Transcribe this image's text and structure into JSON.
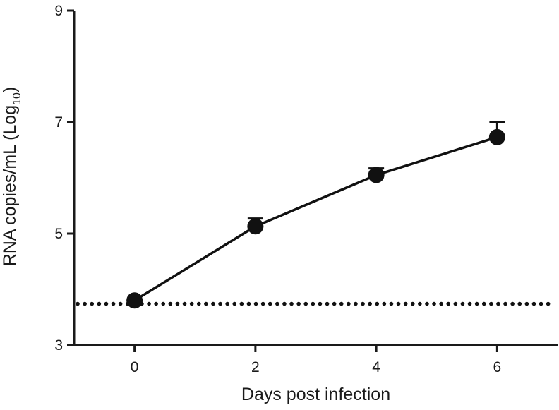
{
  "chart_data": {
    "type": "line",
    "xlabel": "Days post infection",
    "ylabel": {
      "main": "RNA copies/mL (Log",
      "subscript": "10",
      "close": ")"
    },
    "xlim": [
      -1,
      7
    ],
    "ylim": [
      3,
      9
    ],
    "x_ticks": [
      0,
      2,
      4,
      6
    ],
    "y_ticks": [
      3,
      5,
      7,
      9
    ],
    "x_tick_labels": [
      "0",
      "2",
      "4",
      "6"
    ],
    "y_tick_labels": [
      "3",
      "5",
      "7",
      "9"
    ],
    "series": [
      {
        "x": [
          0,
          2,
          4,
          6
        ],
        "y": [
          3.8,
          5.13,
          6.05,
          6.73
        ],
        "error_upper": [
          3.8,
          5.27,
          6.17,
          7.0
        ],
        "marker": "circle",
        "color": "#111111"
      }
    ],
    "reference_line": {
      "y": 3.74,
      "style": "dotted",
      "color": "#111111"
    },
    "grid": false,
    "legend": "none"
  }
}
